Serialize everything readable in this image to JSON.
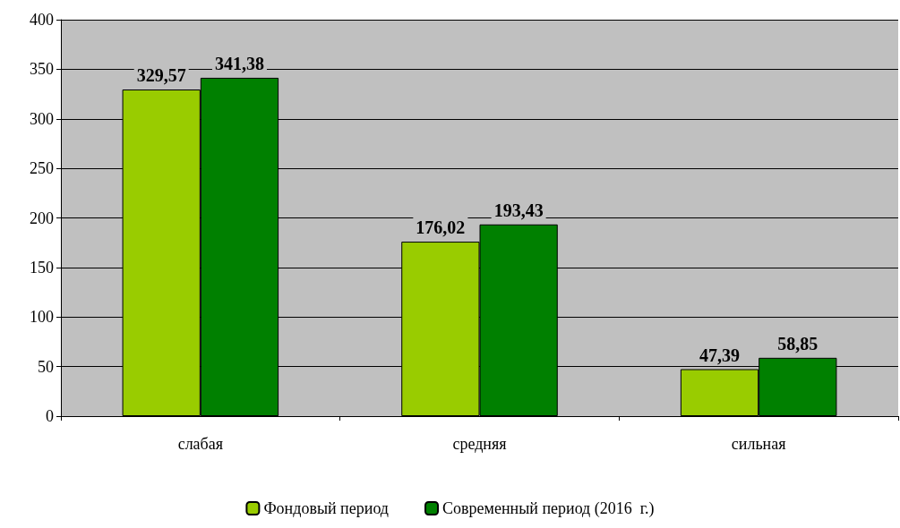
{
  "chart_data": {
    "type": "bar",
    "categories": [
      "слабая",
      "средняя",
      "сильная"
    ],
    "series": [
      {
        "name": "Фондовый период",
        "color": "#99cc00",
        "values": [
          329.57,
          176.02,
          47.39
        ],
        "value_labels": [
          "329,57",
          "176,02",
          "47,39"
        ]
      },
      {
        "name": "Современный период (2016  г.)",
        "color": "#008000",
        "values": [
          341.38,
          193.43,
          58.85
        ],
        "value_labels": [
          "341,38",
          "193,43",
          "58,85"
        ]
      }
    ],
    "ylim": [
      0,
      400
    ],
    "yticks": [
      0,
      50,
      100,
      150,
      200,
      250,
      300,
      350,
      400
    ],
    "grid": "y",
    "legend": "bottom"
  }
}
